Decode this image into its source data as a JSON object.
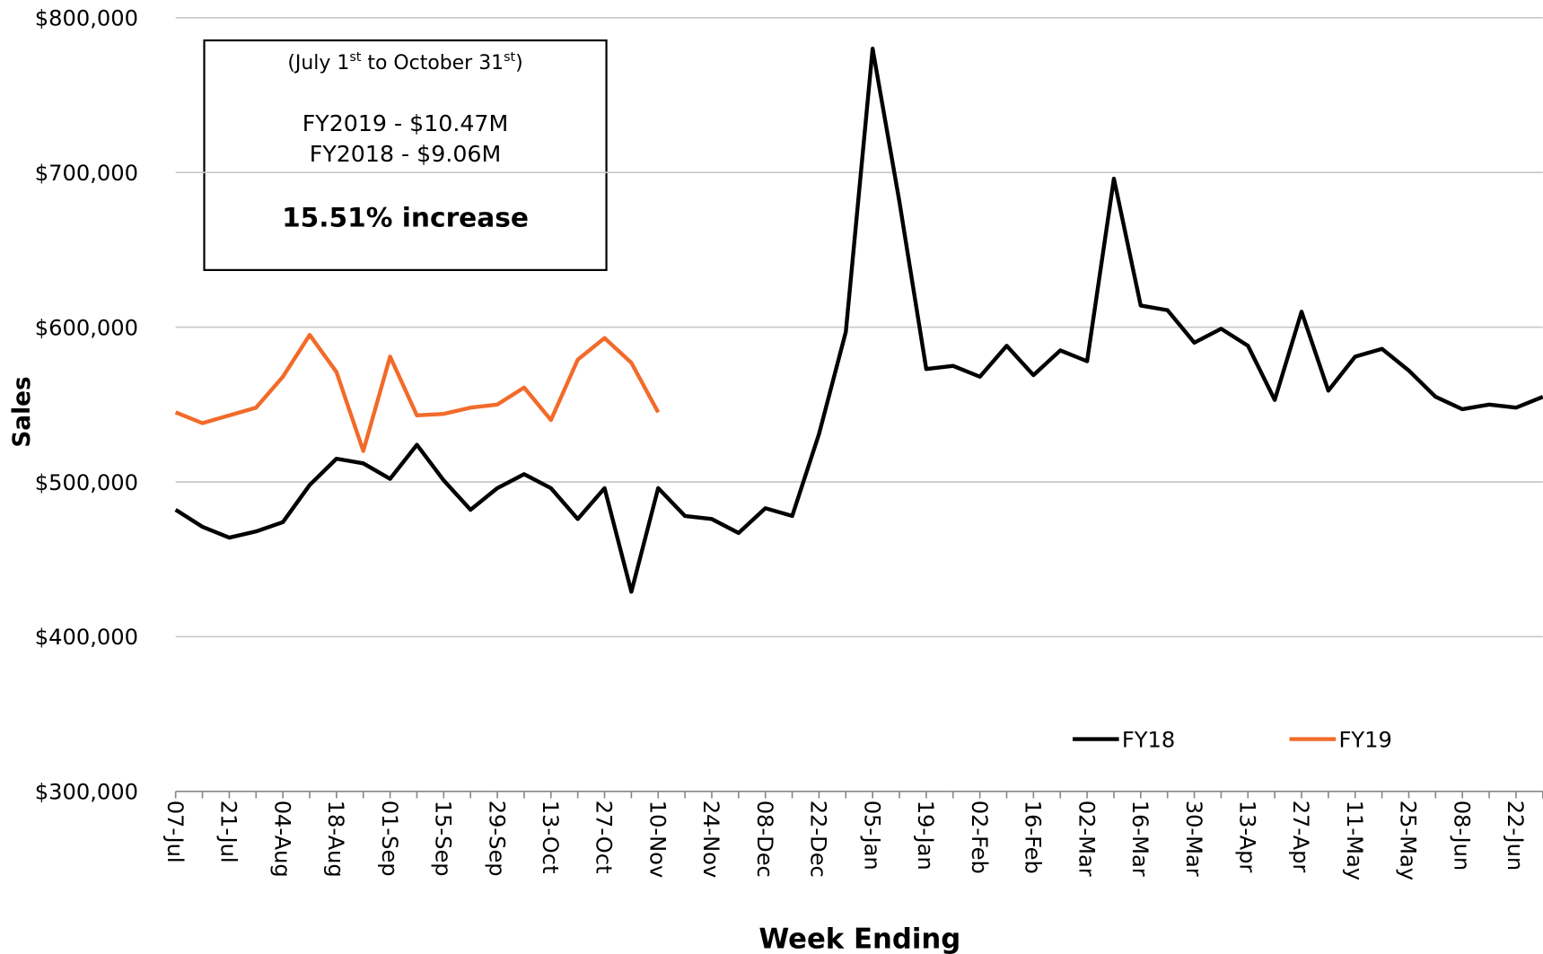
{
  "chart_data": {
    "type": "line",
    "y_label": "Sales",
    "x_label": "Week Ending",
    "categories": [
      "07-Jul",
      null,
      "21-Jul",
      null,
      "04-Aug",
      null,
      "18-Aug",
      null,
      "01-Sep",
      null,
      "15-Sep",
      null,
      "29-Sep",
      null,
      "13-Oct",
      null,
      "27-Oct",
      null,
      "10-Nov",
      null,
      "24-Nov",
      null,
      "08-Dec",
      null,
      "22-Dec",
      null,
      "05-Jan",
      null,
      "19-Jan",
      null,
      "02-Feb",
      null,
      "16-Feb",
      null,
      "02-Mar",
      null,
      "16-Mar",
      null,
      "30-Mar",
      null,
      "13-Apr",
      null,
      "27-Apr",
      null,
      "11-May",
      null,
      "25-May",
      null,
      "08-Jun",
      null,
      "22-Jun",
      null
    ],
    "series": [
      {
        "name": "FY18",
        "color": "#000000",
        "values": [
          482000,
          471000,
          464000,
          468000,
          474000,
          498000,
          515000,
          512000,
          502000,
          524000,
          501000,
          482000,
          496000,
          505000,
          496000,
          476000,
          496000,
          429000,
          496000,
          478000,
          476000,
          467000,
          483000,
          478000,
          531000,
          597000,
          780000,
          681000,
          573000,
          575000,
          568000,
          588000,
          569000,
          585000,
          578000,
          696000,
          614000,
          611000,
          590000,
          599000,
          588000,
          553000,
          610000,
          559000,
          581000,
          586000,
          572000,
          555000,
          547000,
          550000,
          548000,
          555000
        ]
      },
      {
        "name": "FY19",
        "color": "#f26b2a",
        "values": [
          545000,
          538000,
          543000,
          548000,
          568000,
          595000,
          571000,
          520000,
          581000,
          543000,
          544000,
          548000,
          550000,
          561000,
          540000,
          579000,
          593000,
          577000,
          545000,
          null,
          null,
          null,
          null,
          null,
          null,
          null,
          null,
          null,
          null,
          null,
          null,
          null,
          null,
          null,
          null,
          null,
          null,
          null,
          null,
          null,
          null,
          null,
          null,
          null,
          null,
          null,
          null,
          null,
          null,
          null,
          null,
          null
        ]
      }
    ],
    "ylim": [
      300000,
      800000
    ],
    "yticks": [
      {
        "value": 300000,
        "label": "$300,000"
      },
      {
        "value": 400000,
        "label": "$400,000"
      },
      {
        "value": 500000,
        "label": "$500,000"
      },
      {
        "value": 600000,
        "label": "$600,000"
      },
      {
        "value": 700000,
        "label": "$700,000"
      },
      {
        "value": 800000,
        "label": "$800,000"
      }
    ],
    "grid": true,
    "legend": "bottom-right",
    "annotation": {
      "period": [
        "(July 1",
        "st",
        " to October 31",
        "st",
        ")"
      ],
      "fy2019": "FY2019 - $10.47M",
      "fy2018": "FY2018 - $9.06M",
      "change": "15.51% increase"
    }
  }
}
